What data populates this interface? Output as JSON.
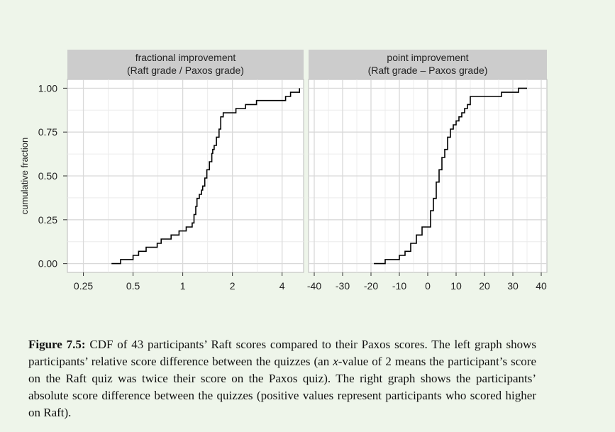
{
  "figure": {
    "ylabel": "cumulative fraction",
    "caption": {
      "label": "Figure 7.5:",
      "part1": "CDF of 43 participants’ Raft scores compared to their Paxos scores. The left graph shows participants’ relative score difference between the quizzes (an ",
      "var": "x",
      "part2": "-value of 2 means the participant’s score on the Raft quiz was twice their score on the Paxos quiz). The right graph shows the participants’ absolute score difference between the quizzes (positive values represent participants who scored higher on Raft)."
    }
  },
  "colors": {
    "background": "#eef5ea",
    "panel": "#ffffff",
    "strip": "#cccccc",
    "grid": "#d9d9d9",
    "line": "#000000"
  },
  "chart_data": [
    {
      "type": "line",
      "step": true,
      "title": "fractional improvement\n(Raft grade / Paxos grade)",
      "xlabel": "",
      "ylabel": "cumulative fraction",
      "xscale": "log2",
      "xlim": [
        0.2,
        5.4
      ],
      "ylim": [
        -0.05,
        1.05
      ],
      "xticks": [
        0.25,
        0.5,
        1,
        2,
        4
      ],
      "xtick_labels": [
        "0.25",
        "0.5",
        "1",
        "2",
        "4"
      ],
      "yticks": [
        0,
        0.25,
        0.5,
        0.75,
        1
      ],
      "ytick_labels": [
        "0.00",
        "0.25",
        "0.50",
        "0.75",
        "1.00"
      ],
      "grid": true,
      "series": [
        {
          "x": [
            0.37,
            0.42,
            0.5,
            0.54,
            0.6,
            0.7,
            0.74,
            0.85,
            0.95,
            1.05,
            1.14,
            1.17,
            1.2,
            1.22,
            1.26,
            1.3,
            1.32,
            1.36,
            1.4,
            1.45,
            1.5,
            1.52,
            1.55,
            1.6,
            1.66,
            1.7,
            1.76,
            2.1,
            2.4,
            2.8,
            4.2,
            4.5,
            5.1
          ],
          "y": [
            0,
            0.023,
            0.047,
            0.07,
            0.093,
            0.116,
            0.14,
            0.163,
            0.186,
            0.209,
            0.232,
            0.28,
            0.326,
            0.372,
            0.395,
            0.419,
            0.442,
            0.488,
            0.535,
            0.581,
            0.628,
            0.651,
            0.674,
            0.721,
            0.767,
            0.837,
            0.86,
            0.884,
            0.907,
            0.93,
            0.953,
            0.977,
            1.0
          ]
        }
      ]
    },
    {
      "type": "line",
      "step": true,
      "title": "point improvement\n(Raft grade – Paxos grade)",
      "xlabel": "",
      "xlim": [
        -42,
        42
      ],
      "ylim": [
        -0.05,
        1.05
      ],
      "xticks": [
        -40,
        -30,
        -20,
        -10,
        0,
        10,
        20,
        30,
        40
      ],
      "xtick_labels": [
        "-40",
        "-30",
        "-20",
        "-10",
        "0",
        "10",
        "20",
        "30",
        "40"
      ],
      "yticks": [
        0,
        0.25,
        0.5,
        0.75,
        1
      ],
      "grid": true,
      "series": [
        {
          "x": [
            -19,
            -15,
            -10,
            -8,
            -6,
            -4,
            -2,
            1,
            2,
            3,
            4,
            5,
            6,
            7,
            8,
            9,
            10,
            11,
            12,
            13,
            14,
            15,
            17,
            26,
            32,
            35
          ],
          "y": [
            0,
            0.023,
            0.047,
            0.07,
            0.116,
            0.163,
            0.209,
            0.302,
            0.372,
            0.465,
            0.535,
            0.605,
            0.651,
            0.721,
            0.767,
            0.791,
            0.814,
            0.837,
            0.86,
            0.884,
            0.907,
            0.953,
            0.953,
            0.977,
            1.0,
            1.0
          ]
        }
      ]
    }
  ]
}
